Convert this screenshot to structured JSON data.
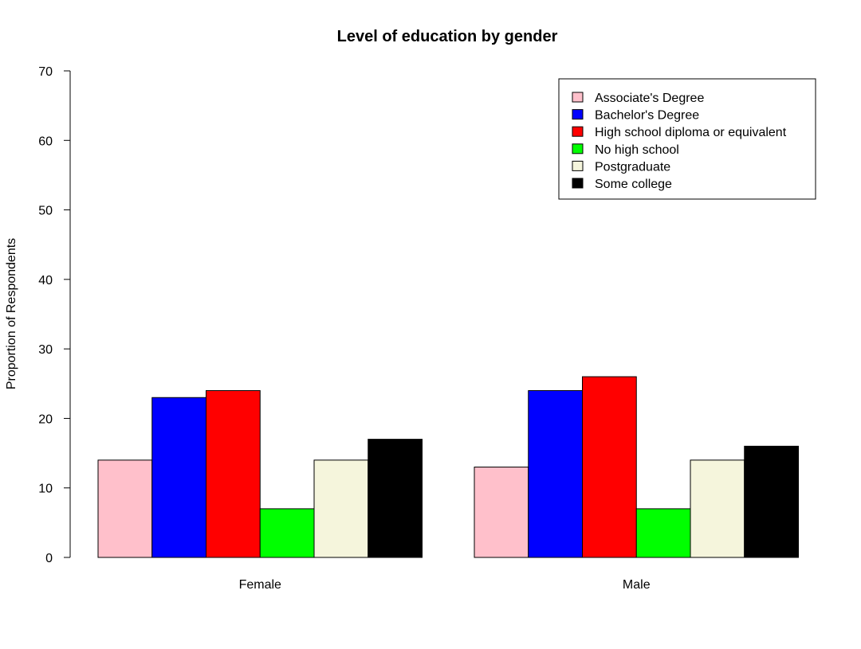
{
  "chart_data": {
    "type": "bar",
    "title": "Level of education by gender",
    "xlabel": "",
    "ylabel": "Proportion of Respondents",
    "ylim": [
      0,
      70
    ],
    "yticks": [
      0,
      10,
      20,
      30,
      40,
      50,
      60,
      70
    ],
    "categories": [
      "Female",
      "Male"
    ],
    "series": [
      {
        "name": "Associate's Degree",
        "color": "#ffc0cb",
        "values": [
          14,
          13
        ]
      },
      {
        "name": "Bachelor's Degree",
        "color": "#0000ff",
        "values": [
          23,
          24
        ]
      },
      {
        "name": "High school diploma or equivalent",
        "color": "#ff0000",
        "values": [
          24,
          26
        ]
      },
      {
        "name": "No high school",
        "color": "#00ff00",
        "values": [
          7,
          7
        ]
      },
      {
        "name": "Postgraduate",
        "color": "#f5f5dc",
        "values": [
          14,
          14
        ]
      },
      {
        "name": "Some college",
        "color": "#000000",
        "values": [
          17,
          16
        ]
      }
    ],
    "legend_position": "top-right",
    "grid": false
  }
}
